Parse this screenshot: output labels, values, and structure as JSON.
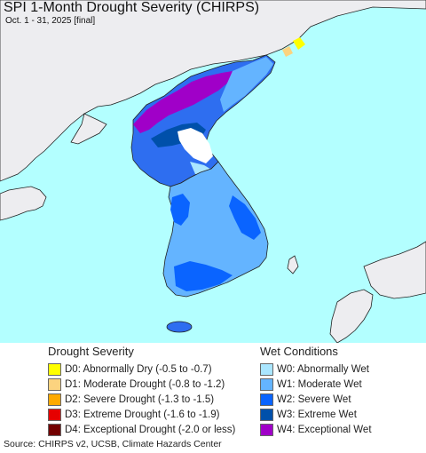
{
  "title": "SPI 1-Month Drought Severity (CHIRPS)",
  "subtitle": "Oct. 1 - 31, 2025 [final]",
  "colors": {
    "ocean": "#b3ffff",
    "land_other": "#ededf0",
    "neutral": "#ffffff"
  },
  "drought_legend": {
    "heading": "Drought Severity",
    "items": [
      {
        "label": "D0: Abnormally Dry (-0.5 to -0.7)",
        "color": "#ffff00"
      },
      {
        "label": "D1: Moderate Drought (-0.8 to -1.2)",
        "color": "#fcd37f"
      },
      {
        "label": "D2: Severe Drought (-1.3 to -1.5)",
        "color": "#ffaa00"
      },
      {
        "label": "D3: Extreme Drought (-1.6 to -1.9)",
        "color": "#e60000"
      },
      {
        "label": "D4: Exceptional Drought (-2.0 or less)",
        "color": "#730000"
      }
    ]
  },
  "wet_legend": {
    "heading": "Wet Conditions",
    "items": [
      {
        "label": "W0: Abnormally Wet",
        "color": "#aae6ff"
      },
      {
        "label": "W1: Moderate Wet",
        "color": "#64b4ff"
      },
      {
        "label": "W2: Severe Wet",
        "color": "#0a64ff"
      },
      {
        "label": "W3: Extreme Wet",
        "color": "#0050aa"
      },
      {
        "label": "W4: Exceptional Wet",
        "color": "#a000c8"
      }
    ]
  },
  "source": "Source: CHIRPS v2, UCSB, Climate Hazards Center"
}
